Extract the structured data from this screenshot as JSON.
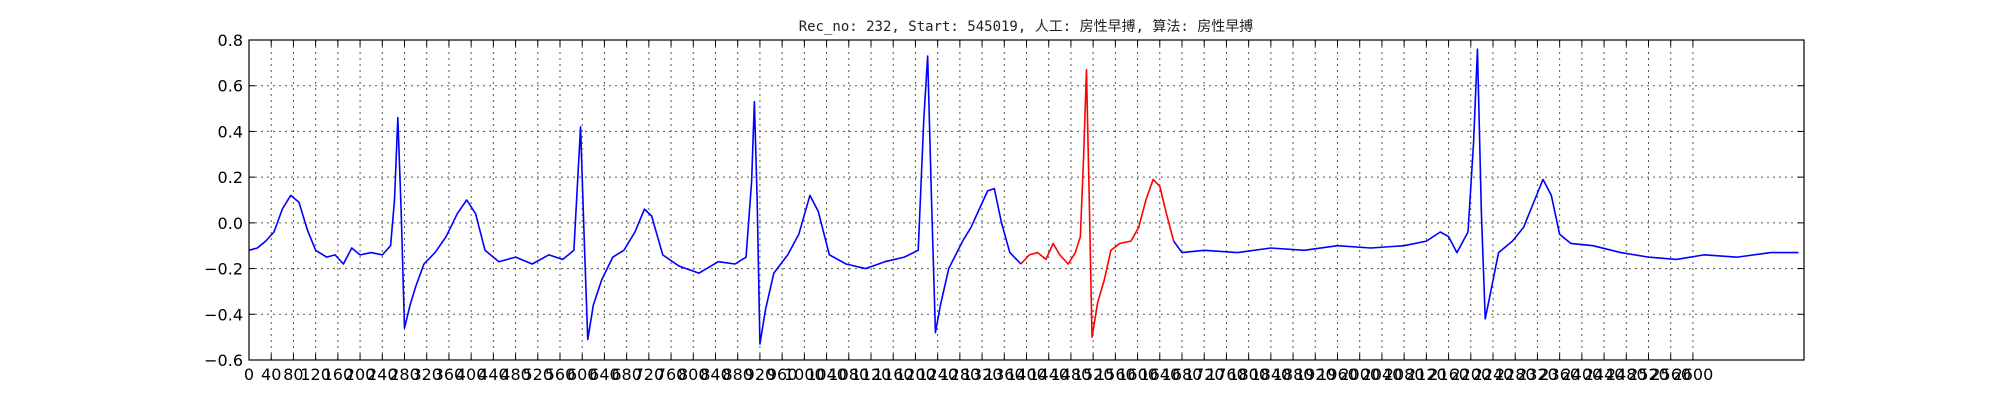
{
  "chart_data": {
    "type": "line",
    "title": "Rec_no: 232, Start: 545019, 人工: 房性早搏, 算法: 房性早搏",
    "xlabel": "",
    "ylabel": "",
    "xlim": [
      0,
      2800
    ],
    "ylim": [
      -0.6,
      0.8
    ],
    "grid": true,
    "legend": "none",
    "x_ticks": [
      0,
      40,
      80,
      120,
      160,
      200,
      240,
      280,
      320,
      360,
      400,
      440,
      480,
      520,
      560,
      600,
      640,
      680,
      720,
      760,
      800,
      840,
      880,
      920,
      960,
      1000,
      1040,
      1080,
      1120,
      1160,
      1200,
      1240,
      1280,
      1320,
      1360,
      1400,
      1440,
      1480,
      1520,
      1560,
      1600,
      1640,
      1680,
      1720,
      1760,
      1800,
      1840,
      1880,
      1920,
      1960,
      2000,
      2040,
      2080,
      2120,
      2160,
      2200,
      2240,
      2280,
      2320,
      2360,
      2400,
      2440,
      2480,
      2520,
      2560,
      2600
    ],
    "x_tick_labels": [
      "0",
      "40",
      "80",
      "120",
      "160",
      "200",
      "240",
      "280",
      "320",
      "360",
      "400",
      "440",
      "480",
      "520",
      "560",
      "600",
      "640",
      "680",
      "720",
      "760",
      "800",
      "840",
      "880",
      "920",
      "960",
      "1000",
      "1040",
      "1080",
      "1120",
      "1160",
      "1200",
      "1240",
      "1280",
      "1320",
      "1360",
      "1400",
      "1440",
      "1480",
      "1520",
      "1560",
      "1600",
      "1640",
      "1680",
      "1720",
      "1760",
      "1800",
      "1840",
      "1880",
      "1920",
      "1960",
      "2000",
      "2040",
      "2080",
      "2120",
      "2160",
      "2200",
      "2240",
      "2280",
      "2320",
      "2360",
      "2400",
      "2440",
      "2480",
      "2520",
      "2560",
      "2600"
    ],
    "y_ticks": [
      -0.6,
      -0.4,
      -0.2,
      0.0,
      0.2,
      0.4,
      0.6,
      0.8
    ],
    "y_tick_labels": [
      "−0.6",
      "−0.4",
      "−0.2",
      "0.0",
      "0.2",
      "0.4",
      "0.6",
      "0.8"
    ],
    "series": [
      {
        "color": "#0000ff",
        "points": [
          [
            0,
            -0.12
          ],
          [
            15,
            -0.11
          ],
          [
            30,
            -0.08
          ],
          [
            45,
            -0.04
          ],
          [
            60,
            0.06
          ],
          [
            75,
            0.12
          ],
          [
            90,
            0.09
          ],
          [
            105,
            -0.03
          ],
          [
            120,
            -0.12
          ],
          [
            140,
            -0.15
          ],
          [
            155,
            -0.14
          ],
          [
            170,
            -0.18
          ],
          [
            185,
            -0.11
          ],
          [
            200,
            -0.14
          ],
          [
            220,
            -0.13
          ],
          [
            240,
            -0.14
          ],
          [
            255,
            -0.1
          ],
          [
            262,
            0.1
          ],
          [
            268,
            0.46
          ],
          [
            274,
            0.05
          ],
          [
            280,
            -0.46
          ],
          [
            290,
            -0.36
          ],
          [
            300,
            -0.28
          ],
          [
            315,
            -0.18
          ],
          [
            335,
            -0.13
          ],
          [
            355,
            -0.06
          ],
          [
            375,
            0.04
          ],
          [
            392,
            0.1
          ],
          [
            408,
            0.04
          ],
          [
            425,
            -0.12
          ],
          [
            450,
            -0.17
          ],
          [
            480,
            -0.15
          ],
          [
            510,
            -0.18
          ],
          [
            540,
            -0.14
          ],
          [
            565,
            -0.16
          ],
          [
            585,
            -0.12
          ],
          [
            597,
            0.42
          ],
          [
            604,
            -0.1
          ],
          [
            610,
            -0.51
          ],
          [
            620,
            -0.36
          ],
          [
            635,
            -0.25
          ],
          [
            655,
            -0.15
          ],
          [
            675,
            -0.12
          ],
          [
            695,
            -0.04
          ],
          [
            712,
            0.06
          ],
          [
            725,
            0.03
          ],
          [
            745,
            -0.14
          ],
          [
            775,
            -0.19
          ],
          [
            810,
            -0.22
          ],
          [
            845,
            -0.17
          ],
          [
            875,
            -0.18
          ],
          [
            895,
            -0.15
          ],
          [
            905,
            0.18
          ],
          [
            910,
            0.53
          ],
          [
            915,
            0.1
          ],
          [
            920,
            -0.53
          ],
          [
            930,
            -0.38
          ],
          [
            945,
            -0.22
          ],
          [
            970,
            -0.14
          ],
          [
            990,
            -0.05
          ],
          [
            1010,
            0.12
          ],
          [
            1025,
            0.05
          ],
          [
            1045,
            -0.14
          ],
          [
            1075,
            -0.18
          ],
          [
            1110,
            -0.2
          ],
          [
            1145,
            -0.17
          ],
          [
            1180,
            -0.15
          ],
          [
            1205,
            -0.12
          ],
          [
            1215,
            0.45
          ],
          [
            1222,
            0.73
          ],
          [
            1229,
            0.1
          ],
          [
            1236,
            -0.48
          ],
          [
            1245,
            -0.36
          ],
          [
            1260,
            -0.2
          ],
          [
            1285,
            -0.08
          ],
          [
            1300,
            -0.02
          ],
          [
            1315,
            0.06
          ],
          [
            1330,
            0.14
          ],
          [
            1342,
            0.15
          ],
          [
            1355,
            0.0
          ],
          [
            1370,
            -0.13
          ],
          [
            1390,
            -0.18
          ]
        ]
      },
      {
        "color": "#ff0000",
        "points": [
          [
            1390,
            -0.18
          ],
          [
            1405,
            -0.14
          ],
          [
            1420,
            -0.13
          ],
          [
            1435,
            -0.16
          ],
          [
            1448,
            -0.09
          ],
          [
            1460,
            -0.14
          ],
          [
            1475,
            -0.18
          ],
          [
            1488,
            -0.13
          ],
          [
            1497,
            -0.06
          ],
          [
            1503,
            0.3
          ],
          [
            1508,
            0.67
          ],
          [
            1513,
            0.1
          ],
          [
            1518,
            -0.5
          ],
          [
            1528,
            -0.35
          ],
          [
            1540,
            -0.25
          ],
          [
            1552,
            -0.12
          ],
          [
            1568,
            -0.09
          ],
          [
            1588,
            -0.08
          ],
          [
            1602,
            -0.02
          ],
          [
            1615,
            0.1
          ],
          [
            1628,
            0.19
          ],
          [
            1640,
            0.16
          ],
          [
            1652,
            0.04
          ],
          [
            1665,
            -0.08
          ]
        ]
      },
      {
        "color": "#0000ff",
        "points": [
          [
            1665,
            -0.08
          ],
          [
            1680,
            -0.13
          ],
          [
            1720,
            -0.12
          ],
          [
            1780,
            -0.13
          ],
          [
            1840,
            -0.11
          ],
          [
            1900,
            -0.12
          ],
          [
            1960,
            -0.1
          ],
          [
            2020,
            -0.11
          ],
          [
            2080,
            -0.1
          ],
          [
            2120,
            -0.08
          ],
          [
            2145,
            -0.04
          ],
          [
            2160,
            -0.06
          ],
          [
            2175,
            -0.13
          ],
          [
            2195,
            -0.04
          ],
          [
            2205,
            0.35
          ],
          [
            2212,
            0.76
          ],
          [
            2219,
            0.05
          ],
          [
            2226,
            -0.42
          ],
          [
            2236,
            -0.3
          ],
          [
            2250,
            -0.13
          ],
          [
            2275,
            -0.08
          ],
          [
            2295,
            -0.02
          ],
          [
            2315,
            0.1
          ],
          [
            2330,
            0.19
          ],
          [
            2345,
            0.12
          ],
          [
            2360,
            -0.05
          ],
          [
            2380,
            -0.09
          ],
          [
            2420,
            -0.1
          ],
          [
            2470,
            -0.13
          ],
          [
            2520,
            -0.15
          ],
          [
            2570,
            -0.16
          ],
          [
            2620,
            -0.14
          ],
          [
            2680,
            -0.15
          ],
          [
            2740,
            -0.13
          ],
          [
            2790,
            -0.13
          ]
        ]
      }
    ]
  }
}
